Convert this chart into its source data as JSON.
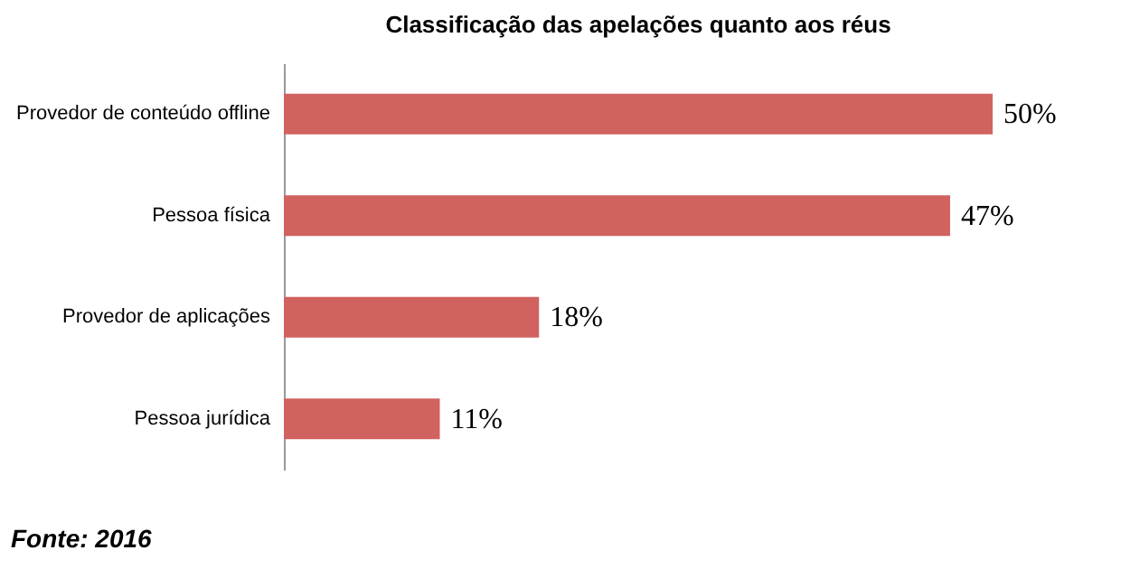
{
  "chart_data": {
    "type": "bar",
    "orientation": "horizontal",
    "title": "Classificação das apelações quanto aos réus",
    "categories": [
      "Provedor de conteúdo offline",
      "Pessoa física",
      "Provedor de aplicações",
      "Pessoa jurídica"
    ],
    "values": [
      50,
      47,
      18,
      11
    ],
    "color": "#d0625f",
    "value_labels": [
      "50%",
      "47%",
      "18%",
      "11%"
    ],
    "annotations": [
      "Fonte: 2016"
    ]
  }
}
